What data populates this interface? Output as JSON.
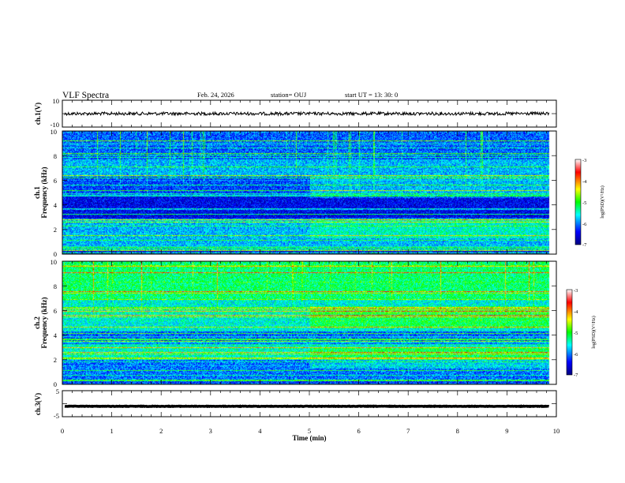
{
  "header": {
    "title": "VLF Spectra",
    "date": "Feb. 24, 2026",
    "station": "station= OUJ",
    "start_time": "start  UT  =   13: 30: 0"
  },
  "chart_data": [
    {
      "type": "line",
      "panel": "waveform-ch1",
      "ylabel": "ch.1(V)",
      "ylim": [
        -10,
        10
      ],
      "yticks": [
        "10",
        "-10"
      ],
      "xlim": [
        0,
        10
      ],
      "level": 0,
      "color": "#000000"
    },
    {
      "type": "heatmap",
      "panel": "spectrogram-ch1",
      "ylabel_line1": "ch.1",
      "ylabel_line2": "Frequency  (kHz)",
      "ylim": [
        0,
        10
      ],
      "yticks": [
        "0",
        "2",
        "4",
        "6",
        "8",
        "10"
      ],
      "xlim": [
        0,
        10
      ],
      "data_end_min": 9.85,
      "colorbar": {
        "label": "log(PSD)(V²/Hz)",
        "range": [
          -7,
          -3
        ],
        "ticks": [
          "-3",
          "-4",
          "-5",
          "-6",
          "-7"
        ]
      }
    },
    {
      "type": "heatmap",
      "panel": "spectrogram-ch2",
      "ylabel_line1": "ch.2",
      "ylabel_line2": "Frequency  (kHz)",
      "ylim": [
        0,
        10
      ],
      "yticks": [
        "0",
        "2",
        "4",
        "6",
        "8",
        "10"
      ],
      "xlim": [
        0,
        10
      ],
      "data_end_min": 9.85,
      "colorbar": {
        "label": "log(PSD)(V²/Hz)",
        "range": [
          -7,
          -3
        ],
        "ticks": [
          "-3",
          "-4",
          "-5",
          "-6",
          "-7"
        ]
      }
    },
    {
      "type": "line",
      "panel": "waveform-ch3",
      "ylabel": "ch.3(V)",
      "ylim": [
        -5,
        5
      ],
      "yticks": [
        "5",
        "-5"
      ],
      "xlim": [
        0,
        10
      ],
      "level": -1,
      "color": "#000000"
    }
  ],
  "xaxis": {
    "label": "Time  (min)",
    "ticks": [
      "0",
      "1",
      "2",
      "3",
      "4",
      "5",
      "6",
      "7",
      "8",
      "9",
      "10"
    ]
  },
  "colors": {
    "colormap": [
      "#00007f",
      "#0000ff",
      "#00ffff",
      "#00ff00",
      "#ffff00",
      "#ff0000",
      "#ffffff"
    ],
    "background": "#ffffff",
    "axis": "#000000"
  }
}
